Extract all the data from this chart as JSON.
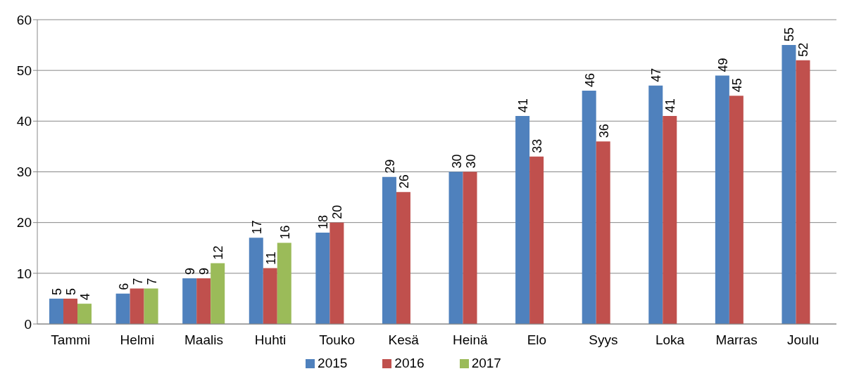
{
  "chart_data": {
    "type": "bar",
    "categories": [
      "Tammi",
      "Helmi",
      "Maalis",
      "Huhti",
      "Touko",
      "Kesä",
      "Heinä",
      "Elo",
      "Syys",
      "Loka",
      "Marras",
      "Joulu"
    ],
    "series": [
      {
        "name": "2015",
        "color": "#4f81bd",
        "values": [
          5,
          6,
          9,
          17,
          18,
          29,
          30,
          41,
          46,
          47,
          49,
          55
        ]
      },
      {
        "name": "2016",
        "color": "#c0504d",
        "values": [
          5,
          7,
          9,
          11,
          20,
          26,
          30,
          33,
          36,
          41,
          45,
          52
        ]
      },
      {
        "name": "2017",
        "color": "#9bbb59",
        "values": [
          4,
          7,
          12,
          16,
          null,
          null,
          null,
          null,
          null,
          null,
          null,
          null
        ]
      }
    ],
    "ylim": [
      0,
      60
    ],
    "yticks": [
      0,
      10,
      20,
      30,
      40,
      50,
      60
    ],
    "grid": "y",
    "legend": "bottom",
    "data_labels": true
  }
}
